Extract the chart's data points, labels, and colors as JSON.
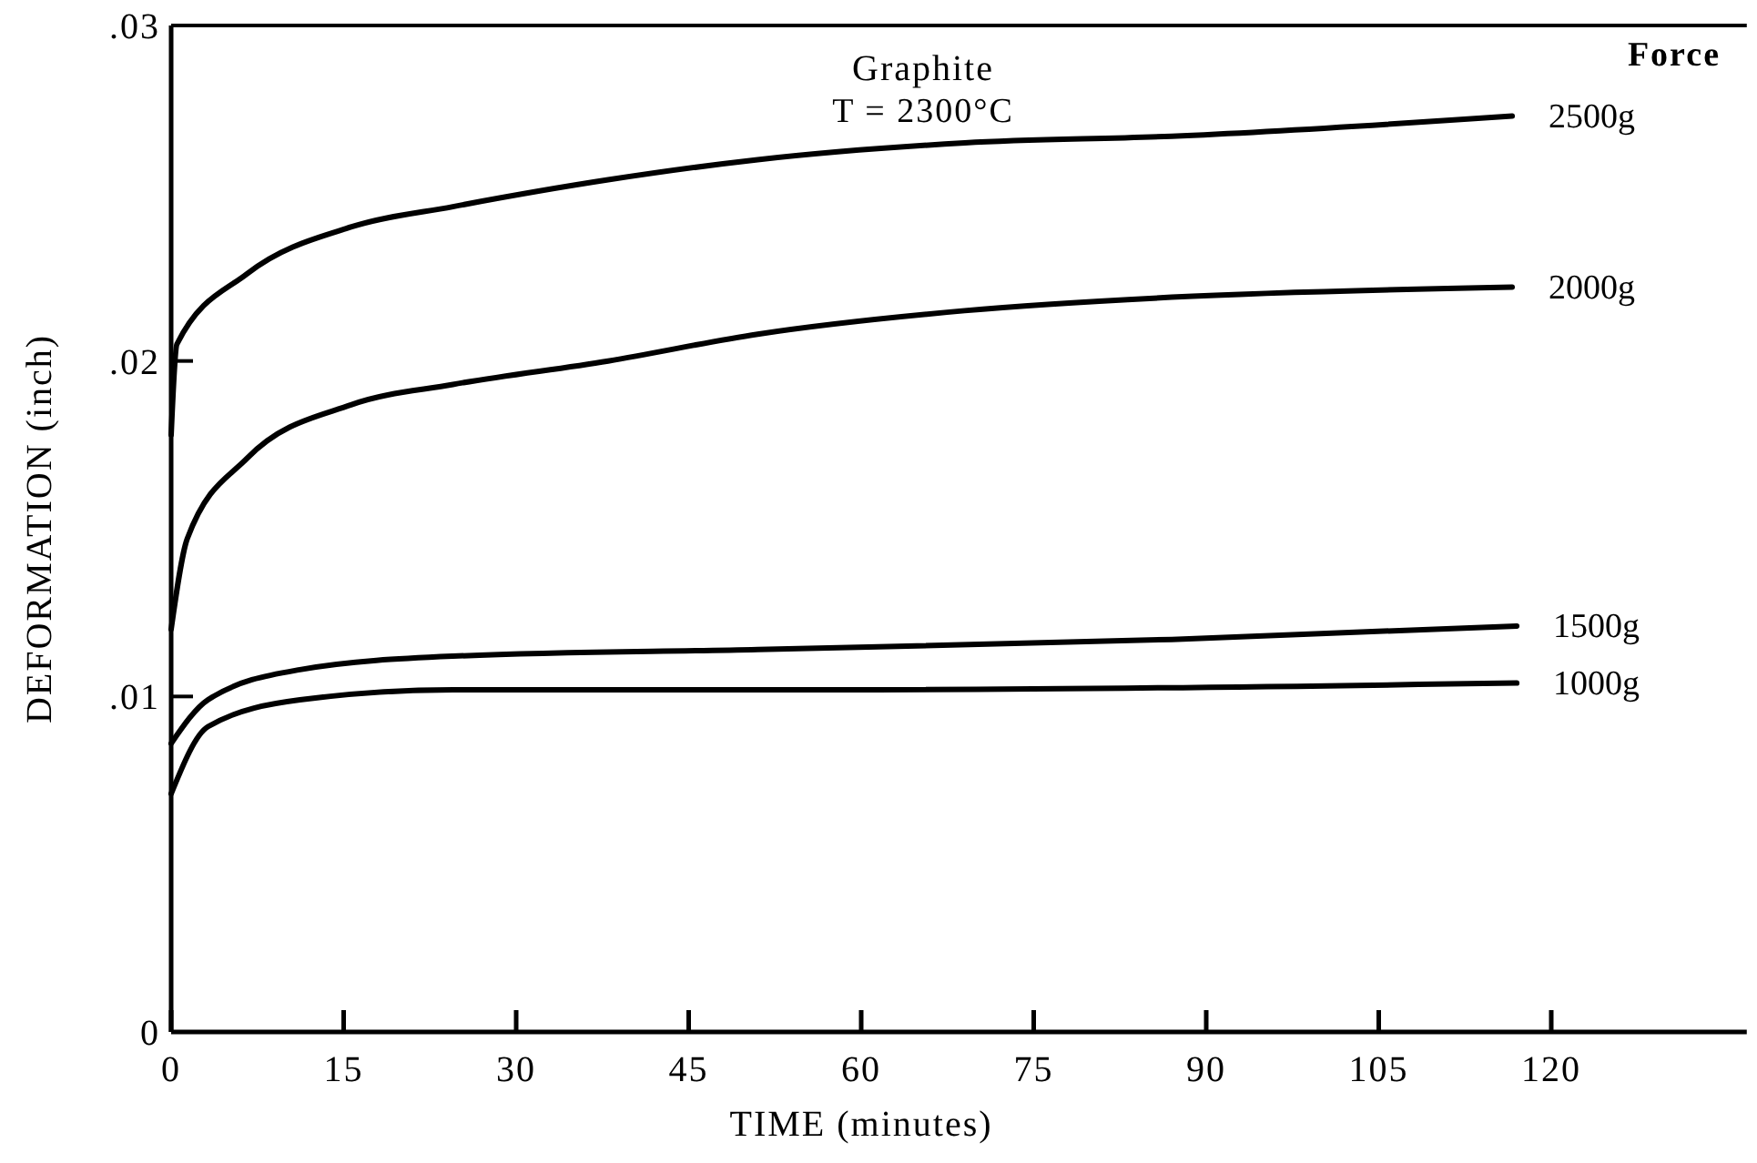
{
  "chart_data": {
    "type": "line",
    "title": "Graphite",
    "subtitle": "T = 2300°C",
    "xlabel": "TIME (minutes)",
    "ylabel": "DEFORMATION (inch)",
    "legend_title": "Force",
    "xlim": [
      0,
      137
    ],
    "xticks": [
      0,
      15,
      30,
      45,
      60,
      75,
      90,
      105,
      120
    ],
    "ylim": [
      0,
      0.03
    ],
    "yticks": [
      {
        "value": 0,
        "label": "0"
      },
      {
        "value": 0.01,
        "label": ".01"
      },
      {
        "value": 0.02,
        "label": ".02"
      },
      {
        "value": 0.03,
        "label": ".03"
      }
    ],
    "grid": false,
    "marker": "none",
    "line_style": "solid",
    "series": [
      {
        "name": "2500g",
        "color": "#000000",
        "x": [
          0,
          0.5,
          6.6,
          15.7,
          24.5,
          38,
          51,
          69,
          87,
          116.6
        ],
        "values": [
          0.0178,
          0.0205,
          0.0226,
          0.024,
          0.0246,
          0.0254,
          0.026,
          0.0265,
          0.0267,
          0.0273
        ]
      },
      {
        "name": "2000g",
        "color": "#000000",
        "x": [
          0,
          1.4,
          6.6,
          15.7,
          24.5,
          38,
          51,
          69,
          87,
          116.6
        ],
        "values": [
          0.012,
          0.0147,
          0.0171,
          0.0187,
          0.0193,
          0.02,
          0.0208,
          0.0215,
          0.0219,
          0.0222
        ]
      },
      {
        "name": "1500g",
        "color": "#000000",
        "x": [
          0,
          3.2,
          11.2,
          24.5,
          51,
          87,
          117
        ],
        "values": [
          0.0086,
          0.0099,
          0.0108,
          0.0112,
          0.0114,
          0.0117,
          0.0121
        ]
      },
      {
        "name": "1000g",
        "color": "#000000",
        "x": [
          0,
          3.2,
          11.2,
          24.5,
          60,
          117
        ],
        "values": [
          0.0071,
          0.0091,
          0.0099,
          0.0102,
          0.0102,
          0.0104
        ]
      }
    ]
  }
}
